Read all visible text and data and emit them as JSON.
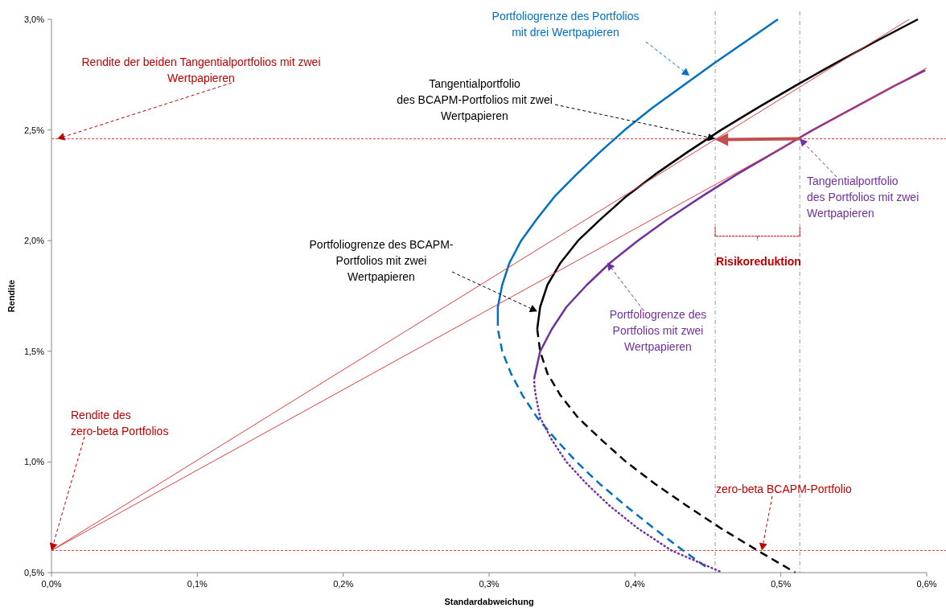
{
  "chart_data": {
    "type": "line",
    "xlabel": "Standardabweichung",
    "ylabel": "Rendite",
    "xlim": [
      0,
      0.6
    ],
    "ylim": [
      0.5,
      3.0
    ],
    "xticks": [
      {
        "value": 0,
        "label": "0,0%"
      },
      {
        "value": 0.1,
        "label": "0,1%"
      },
      {
        "value": 0.2,
        "label": "0,2%"
      },
      {
        "value": 0.3,
        "label": "0,3%"
      },
      {
        "value": 0.4,
        "label": "0,4%"
      },
      {
        "value": 0.5,
        "label": "0,5%"
      },
      {
        "value": 0.6,
        "label": "0,6%"
      }
    ],
    "yticks": [
      {
        "value": 0.5,
        "label": "0,5%"
      },
      {
        "value": 1.0,
        "label": "1,0%"
      },
      {
        "value": 1.5,
        "label": "1,5%"
      },
      {
        "value": 2.0,
        "label": "2,0%"
      },
      {
        "value": 2.5,
        "label": "2,5%"
      },
      {
        "value": 3.0,
        "label": "3,0%"
      }
    ],
    "grid": false,
    "marker": "none",
    "series": [
      {
        "color": "#0070c0",
        "line_style": "solid",
        "x": [
          0.306,
          0.306,
          0.309,
          0.314,
          0.322,
          0.333,
          0.345,
          0.36,
          0.376,
          0.393,
          0.412,
          0.433,
          0.454,
          0.476,
          0.498
        ],
        "values": [
          1.652,
          1.7,
          1.8,
          1.9,
          2.0,
          2.1,
          2.2,
          2.3,
          2.4,
          2.5,
          2.6,
          2.7,
          2.8,
          2.9,
          3.0
        ]
      },
      {
        "color": "#0070c0",
        "line_style": "dashed",
        "x": [
          0.306,
          0.306,
          0.309,
          0.315,
          0.323,
          0.333,
          0.346,
          0.36,
          0.376,
          0.394,
          0.413,
          0.433,
          0.45
        ],
        "values": [
          1.652,
          1.6,
          1.5,
          1.4,
          1.3,
          1.2,
          1.1,
          1.0,
          0.9,
          0.8,
          0.7,
          0.6,
          0.52
        ]
      },
      {
        "color": "#000000",
        "line_style": "solid",
        "x": [
          0.333,
          0.335,
          0.34,
          0.349,
          0.361,
          0.377,
          0.394,
          0.414,
          0.436,
          0.459,
          0.484,
          0.51,
          0.537,
          0.565,
          0.594
        ],
        "values": [
          1.6,
          1.7,
          1.8,
          1.9,
          2.0,
          2.1,
          2.2,
          2.3,
          2.4,
          2.5,
          2.6,
          2.7,
          2.8,
          2.9,
          3.0
        ]
      },
      {
        "color": "#000000",
        "line_style": "dashed",
        "x": [
          0.333,
          0.335,
          0.34,
          0.349,
          0.361,
          0.377,
          0.394,
          0.414,
          0.436,
          0.459,
          0.484,
          0.51
        ],
        "values": [
          1.6,
          1.5,
          1.4,
          1.3,
          1.2,
          1.1,
          1.0,
          0.9,
          0.8,
          0.7,
          0.6,
          0.5
        ]
      },
      {
        "color": "#7030a0",
        "line_style": "solid",
        "x": [
          0.331,
          0.335,
          0.343,
          0.353,
          0.367,
          0.383,
          0.402,
          0.423,
          0.446,
          0.47,
          0.496,
          0.522,
          0.55,
          0.578,
          0.599
        ],
        "values": [
          1.38,
          1.5,
          1.6,
          1.7,
          1.8,
          1.9,
          2.0,
          2.1,
          2.2,
          2.3,
          2.4,
          2.5,
          2.6,
          2.7,
          2.77
        ]
      },
      {
        "color": "#7030a0",
        "line_style": "dotted",
        "x": [
          0.331,
          0.331,
          0.332,
          0.335,
          0.343,
          0.353,
          0.367,
          0.383,
          0.402,
          0.425,
          0.46
        ],
        "values": [
          1.38,
          1.35,
          1.3,
          1.2,
          1.1,
          1.0,
          0.9,
          0.8,
          0.7,
          0.6,
          0.5
        ]
      },
      {
        "color": "#e04040",
        "line_style": "solid",
        "x": [
          0,
          0.588
        ],
        "values": [
          0.6,
          3.0
        ]
      },
      {
        "color": "#e04040",
        "line_style": "solid",
        "x": [
          0,
          0.6
        ],
        "values": [
          0.6,
          2.78
        ]
      }
    ],
    "ref_lines": [
      {
        "axis": "y",
        "value": 2.46,
        "color": "#e04040",
        "line_style": "dashed"
      },
      {
        "axis": "y",
        "value": 0.6,
        "color": "#e04040",
        "line_style": "dashed"
      },
      {
        "axis": "x",
        "value": 0.455,
        "color": "#999999",
        "line_style": "dashed"
      },
      {
        "axis": "x",
        "value": 0.513,
        "color": "#999999",
        "line_style": "dashed"
      }
    ],
    "annotations": [
      "Portfoliogrenze des Portfolios\nmit drei Wertpapieren",
      {
        "text": "Rendite der beiden Tangentialportfolios mit zwei\nWertpapieren",
        "x": 0.004,
        "y": 2.46
      },
      {
        "text": "Tangentialportfolio\ndes BCAPM-Portfolios mit zwei\nWertpapieren",
        "x": 0.455,
        "y": 2.46
      },
      {
        "text": "Tangentialportfolio\ndes Portfolios mit zwei\nWertpapieren",
        "x": 0.513,
        "y": 2.46
      },
      "Risikoreduktion",
      {
        "text": "Portfoliogrenze des BCAPM-\nPortfolios mit zwei\nWertpapieren",
        "x": 0.333,
        "y": 1.68
      },
      {
        "text": "Portfoliogrenze des\nPortfolios mit zwei\nWertpapieren",
        "x": 0.381,
        "y": 1.9
      },
      {
        "text": "Rendite des\nzero-beta Portfolios",
        "x": 0,
        "y": 0.6
      },
      {
        "text": "zero-beta BCAPM-Portfolio",
        "x": 0.487,
        "y": 0.6
      }
    ]
  }
}
